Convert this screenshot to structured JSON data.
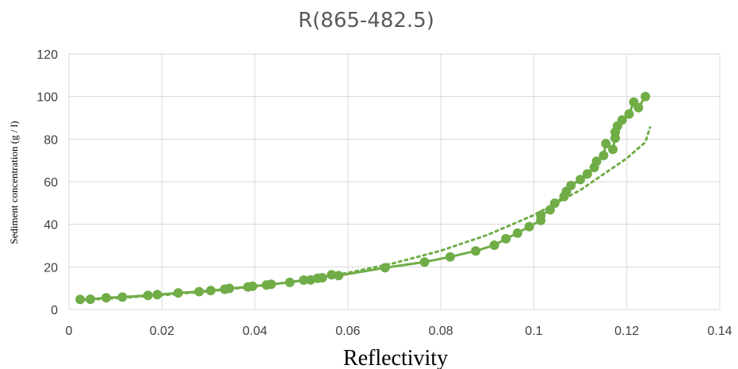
{
  "chart_data": {
    "type": "scatter",
    "title": "R(865-482.5)",
    "xlabel": "Reflectivity",
    "ylabel": "Sediment concentration (g / l)",
    "xlim": [
      0,
      0.14
    ],
    "ylim": [
      0,
      120
    ],
    "x_ticks": [
      "0",
      "0.02",
      "0.04",
      "0.06",
      "0.08",
      "0.1",
      "0.12",
      "0.14"
    ],
    "y_ticks": [
      "0",
      "20",
      "40",
      "60",
      "80",
      "100",
      "120"
    ],
    "grid": true,
    "legend": "none",
    "colors": {
      "series": "#70ad47",
      "grid": "#d9d9d9",
      "text": "#404040",
      "title": "#595959"
    },
    "series": [
      {
        "style": "markers+line",
        "points": [
          [
            0.0024,
            4.7
          ],
          [
            0.0046,
            4.8
          ],
          [
            0.008,
            5.5
          ],
          [
            0.0115,
            5.8
          ],
          [
            0.017,
            6.6
          ],
          [
            0.019,
            7.0
          ],
          [
            0.0235,
            7.8
          ],
          [
            0.028,
            8.4
          ],
          [
            0.0305,
            8.9
          ],
          [
            0.0335,
            9.5
          ],
          [
            0.0345,
            9.9
          ],
          [
            0.0385,
            10.6
          ],
          [
            0.0395,
            10.9
          ],
          [
            0.0425,
            11.5
          ],
          [
            0.0435,
            11.8
          ],
          [
            0.0475,
            12.7
          ],
          [
            0.0505,
            13.8
          ],
          [
            0.052,
            13.9
          ],
          [
            0.0535,
            14.7
          ],
          [
            0.0545,
            14.9
          ],
          [
            0.0565,
            16.3
          ],
          [
            0.058,
            15.9
          ],
          [
            0.068,
            19.6
          ],
          [
            0.0765,
            22.3
          ],
          [
            0.082,
            24.7
          ],
          [
            0.0875,
            27.5
          ],
          [
            0.0915,
            30.2
          ],
          [
            0.094,
            33.2
          ],
          [
            0.0965,
            35.9
          ],
          [
            0.099,
            38.9
          ],
          [
            0.1015,
            41.8
          ],
          [
            0.1015,
            44.2
          ],
          [
            0.1035,
            46.8
          ],
          [
            0.1045,
            49.9
          ],
          [
            0.1065,
            53.0
          ],
          [
            0.107,
            55.5
          ],
          [
            0.108,
            58.2
          ],
          [
            0.11,
            61.0
          ],
          [
            0.1115,
            63.7
          ],
          [
            0.113,
            66.7
          ],
          [
            0.1135,
            69.6
          ],
          [
            0.115,
            72.3
          ],
          [
            0.1155,
            77.9
          ],
          [
            0.117,
            75.2
          ],
          [
            0.1175,
            80.5
          ],
          [
            0.1175,
            83.3
          ],
          [
            0.118,
            86.2
          ],
          [
            0.119,
            89.0
          ],
          [
            0.1205,
            91.8
          ],
          [
            0.1215,
            97.4
          ],
          [
            0.1225,
            94.8
          ],
          [
            0.124,
            100.0
          ]
        ]
      },
      {
        "style": "dotted-trendline",
        "points": [
          [
            0.002,
            4.4
          ],
          [
            0.01,
            5.3
          ],
          [
            0.02,
            6.7
          ],
          [
            0.03,
            8.5
          ],
          [
            0.04,
            10.8
          ],
          [
            0.05,
            13.6
          ],
          [
            0.06,
            17.2
          ],
          [
            0.07,
            21.8
          ],
          [
            0.08,
            27.6
          ],
          [
            0.09,
            35.0
          ],
          [
            0.1,
            44.3
          ],
          [
            0.11,
            56.1
          ],
          [
            0.12,
            71.0
          ],
          [
            0.124,
            78.6
          ],
          [
            0.125,
            85.5
          ]
        ]
      }
    ]
  }
}
